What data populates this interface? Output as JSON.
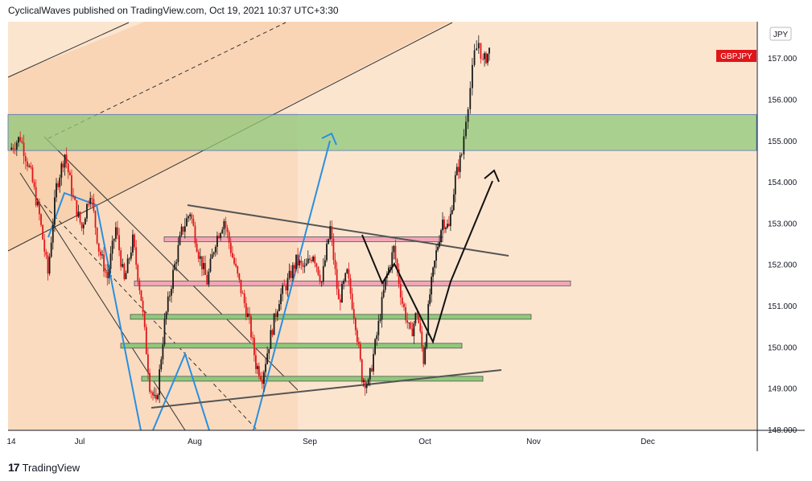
{
  "header": {
    "publish_line": "CyclicalWaves published on TradingView.com, Oct 19, 2021 10:37 UTC+3:30"
  },
  "footer": {
    "logo_glyph": "17",
    "brand": "TradingView"
  },
  "colors": {
    "background": "#fce5cf",
    "candle_up": "#1a1a1a",
    "candle_down": "#e0161a",
    "zone_green": "#8fc97b",
    "zone_pink": "#f2a6b8",
    "channel_fill": "#f6c8a0",
    "arrow_blue": "#2a8fe0",
    "trend_gray": "#555555",
    "price_tag": "#e0161a"
  },
  "chart_data": {
    "type": "candlestick",
    "symbol_currency": "JPY",
    "symbol_tag": "GBPJPY",
    "last_price_label": "157.000",
    "y_axis": {
      "range": [
        148.0,
        157.9
      ],
      "ticks": [
        "148.000",
        "149.000",
        "150.000",
        "151.000",
        "152.000",
        "153.000",
        "154.000",
        "155.000",
        "156.000",
        "157.000"
      ]
    },
    "x_axis": {
      "ticks": [
        "14",
        "Jul",
        "Aug",
        "Sep",
        "Oct",
        "Nov",
        "Dec"
      ]
    },
    "zones": [
      {
        "kind": "green",
        "from": 154.78,
        "to": 155.65
      }
    ],
    "levels": [
      {
        "kind": "pink",
        "price": 152.63
      },
      {
        "kind": "pink",
        "price": 151.56
      },
      {
        "kind": "green",
        "price": 150.75
      },
      {
        "kind": "green",
        "price": 150.05
      },
      {
        "kind": "green",
        "price": 149.25
      }
    ],
    "price_path": [
      [
        0,
        154.8
      ],
      [
        5,
        155.1
      ],
      [
        10,
        154.2
      ],
      [
        14,
        153.2
      ],
      [
        18,
        151.8
      ],
      [
        22,
        153.9
      ],
      [
        26,
        154.7
      ],
      [
        30,
        153.6
      ],
      [
        34,
        152.9
      ],
      [
        38,
        153.8
      ],
      [
        42,
        152.4
      ],
      [
        46,
        151.7
      ],
      [
        50,
        152.9
      ],
      [
        54,
        151.6
      ],
      [
        58,
        152.6
      ],
      [
        62,
        151.2
      ],
      [
        66,
        149.1
      ],
      [
        69,
        148.6
      ],
      [
        73,
        150.6
      ],
      [
        77,
        151.8
      ],
      [
        81,
        152.8
      ],
      [
        85,
        153.3
      ],
      [
        89,
        152.3
      ],
      [
        93,
        151.6
      ],
      [
        97,
        152.6
      ],
      [
        101,
        153.1
      ],
      [
        105,
        152.2
      ],
      [
        109,
        151.4
      ],
      [
        113,
        150.6
      ],
      [
        116,
        149.6
      ],
      [
        119,
        149.3
      ],
      [
        123,
        150.3
      ],
      [
        127,
        151.2
      ],
      [
        131,
        151.6
      ],
      [
        135,
        152.1
      ],
      [
        139,
        151.9
      ],
      [
        143,
        152.3
      ],
      [
        147,
        151.6
      ],
      [
        151,
        152.9
      ],
      [
        155,
        151.1
      ],
      [
        159,
        151.8
      ],
      [
        163,
        150.6
      ],
      [
        166,
        149.3
      ],
      [
        169,
        149.1
      ],
      [
        173,
        150.3
      ],
      [
        177,
        151.6
      ],
      [
        181,
        152.4
      ],
      [
        185,
        151.1
      ],
      [
        189,
        150.3
      ],
      [
        192,
        150.9
      ],
      [
        195,
        149.7
      ],
      [
        198,
        151.3
      ],
      [
        201,
        152.3
      ],
      [
        204,
        153.1
      ],
      [
        207,
        152.9
      ],
      [
        210,
        154.1
      ],
      [
        213,
        154.7
      ],
      [
        215,
        155.6
      ],
      [
        217,
        156.3
      ],
      [
        219,
        157.1
      ],
      [
        221,
        157.4
      ],
      [
        223,
        156.9
      ],
      [
        226,
        157.2
      ]
    ]
  }
}
